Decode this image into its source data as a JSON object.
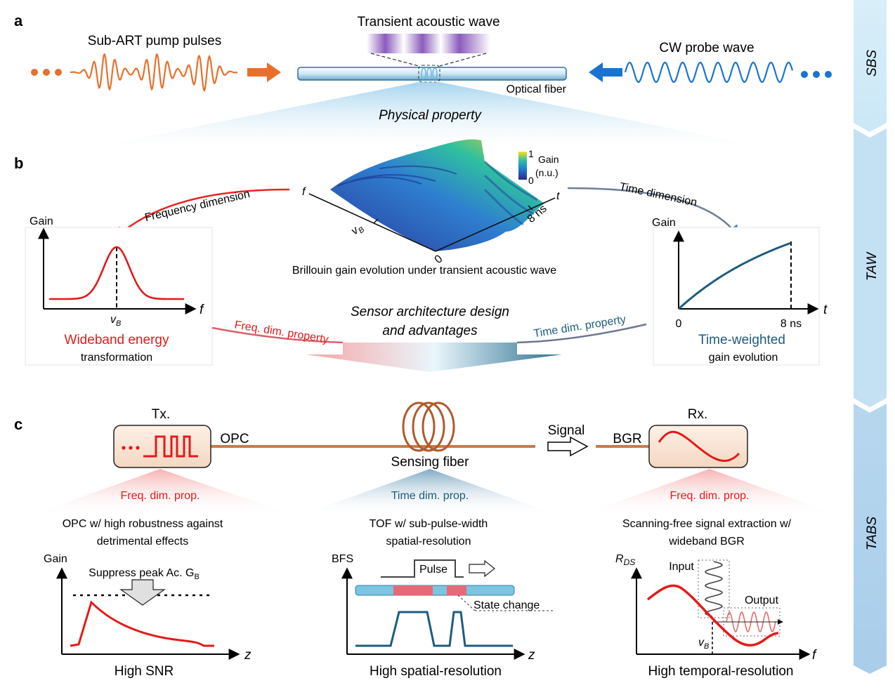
{
  "panel_a": {
    "letter": "a",
    "title": "Transient acoustic wave",
    "pump_label": "Sub-ART pump pulses",
    "probe_label": "CW probe wave",
    "fiber_label": "Optical fiber",
    "physical_property": "Physical property"
  },
  "panel_b": {
    "letter": "b",
    "surface_caption": "Brillouin gain evolution under transient acoustic wave",
    "colorbar_label_1": "Gain",
    "colorbar_label_2": "(n.u.)",
    "colorbar_max": "1",
    "colorbar_min": "0",
    "axis_f": "f",
    "axis_t": "t",
    "axis_vb": "v",
    "axis_vb_sub": "B",
    "axis_zero": "0",
    "axis_8ns": "8 ns",
    "freq_dimension": "Frequency dimension",
    "time_dimension": "Time dimension",
    "left_plot": {
      "ylabel": "Gain",
      "xlabel": "f",
      "tick": "v",
      "tick_sub": "B",
      "caption_1": "Wideband energy",
      "caption_2": "transformation"
    },
    "right_plot": {
      "ylabel": "Gain",
      "xlabel": "t",
      "tick_0": "0",
      "tick_8": "8 ns",
      "caption_1": "Time-weighted",
      "caption_2": "gain evolution"
    },
    "architecture_1": "Sensor architecture design",
    "architecture_2": "and advantages",
    "freq_dim_property": "Freq. dim. property",
    "time_dim_property": "Time dim. property"
  },
  "panel_c": {
    "letter": "c",
    "tx": "Tx.",
    "rx": "Rx.",
    "opc": "OPC",
    "bgr": "BGR",
    "signal": "Signal",
    "sensing_fiber": "Sensing fiber",
    "col1": {
      "prop": "Freq. dim. prop.",
      "desc_1": "OPC w/ high robustness against",
      "desc_2": "detrimental effects",
      "ylabel": "Gain",
      "xlabel": "z",
      "annotation": "Suppress peak Ac. G",
      "annotation_sub": "B",
      "caption": "High SNR"
    },
    "col2": {
      "prop": "Time dim. prop.",
      "desc_1": "TOF w/ sub-pulse-width",
      "desc_2": "spatial-resolution",
      "ylabel": "BFS",
      "xlabel": "z",
      "pulse": "Pulse",
      "state_change": "State change",
      "caption": "High spatial-resolution"
    },
    "col3": {
      "prop": "Freq. dim. prop.",
      "desc_1": "Scanning-free signal extraction w/",
      "desc_2": "wideband BGR",
      "ylabel": "R",
      "ylabel_sub": "DS",
      "xlabel": "f",
      "input": "Input",
      "output": "Output",
      "tick": "v",
      "tick_sub": "B",
      "caption": "High temporal-resolution"
    }
  },
  "side_tabs": [
    "SBS",
    "TAW",
    "TABS"
  ],
  "colors": {
    "orange": "#e8702a",
    "blue": "#1a73d0",
    "red": "#e41a1a",
    "teal": "#1d5c7c",
    "fiber": "#c87a4a"
  }
}
